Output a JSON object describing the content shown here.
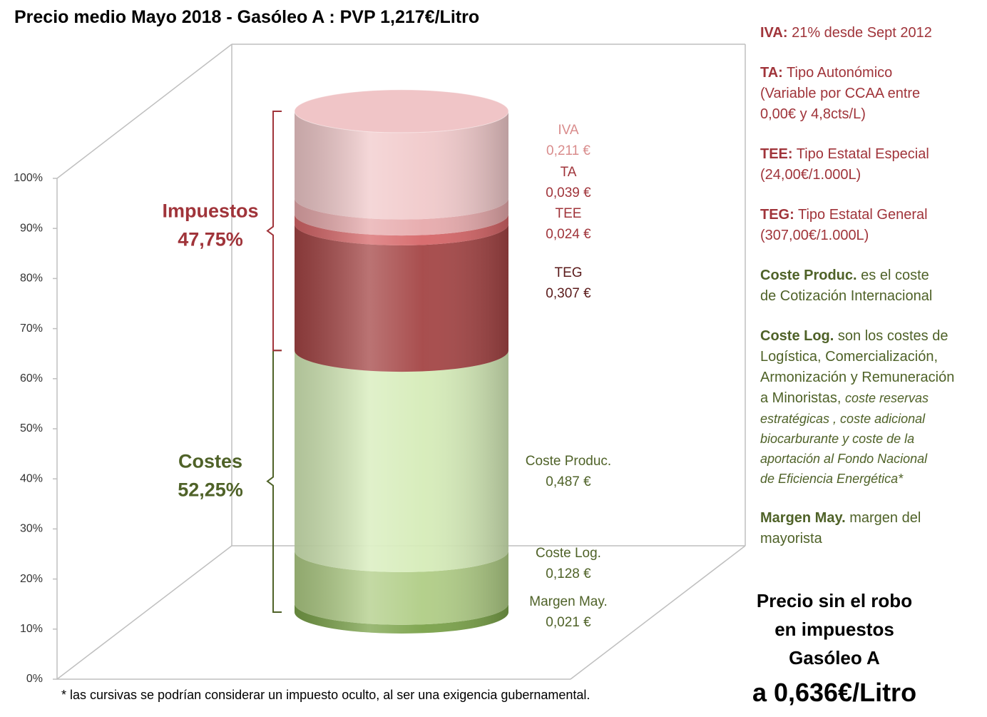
{
  "chart_data": {
    "type": "stacked_cylinder",
    "title": "Precio medio Mayo 2018 - Gasóleo A : PVP 1,217€/Litro",
    "ylim": [
      0,
      100
    ],
    "yticks": [
      {
        "value": 0,
        "label": "0%"
      },
      {
        "value": 10,
        "label": "10%"
      },
      {
        "value": 20,
        "label": "20%"
      },
      {
        "value": 30,
        "label": "30%"
      },
      {
        "value": 40,
        "label": "40%"
      },
      {
        "value": 50,
        "label": "50%"
      },
      {
        "value": 60,
        "label": "60%"
      },
      {
        "value": 70,
        "label": "70%"
      },
      {
        "value": 80,
        "label": "80%"
      },
      {
        "value": 90,
        "label": "90%"
      },
      {
        "value": 100,
        "label": "100%"
      }
    ],
    "segments": [
      {
        "name": "Margen May.",
        "value": 1.73,
        "price_label": "0,021 €",
        "color": "#6f9a3a",
        "label_color": "#4f6228"
      },
      {
        "name": "Coste Log.",
        "value": 10.52,
        "price_label": "0,128 €",
        "color": "#a9c97c",
        "label_color": "#4f6228"
      },
      {
        "name": "Coste Produc.",
        "value": 40.02,
        "price_label": "0,487 €",
        "color": "#d3eab3",
        "label_color": "#4f6228"
      },
      {
        "name": "TEG",
        "value": 25.23,
        "price_label": "0,307 €",
        "color": "#9c3535",
        "label_color": "#5a1a1a"
      },
      {
        "name": "TEE",
        "value": 1.97,
        "price_label": "0,024 €",
        "color": "#d3595b",
        "label_color": "#a0343a"
      },
      {
        "name": "TA",
        "value": 3.2,
        "price_label": "0,039 €",
        "color": "#e5a3a5",
        "label_color": "#a0343a"
      },
      {
        "name": "IVA",
        "value": 17.34,
        "price_label": "0,211 €",
        "color": "#f0c5c7",
        "label_color": "#d98c8c"
      }
    ],
    "groups": [
      {
        "name": "Costes",
        "value": 52.25,
        "value_label": "52,25%",
        "color": "#4f6228"
      },
      {
        "name": "Impuestos",
        "value": 47.75,
        "value_label": "47,75%",
        "color": "#a0343a"
      }
    ]
  },
  "notes": [
    {
      "term": "IVA:",
      "lines": [
        "21% desde Sept 2012"
      ]
    },
    {
      "term": "TA:",
      "lines": [
        "Tipo Autonómico",
        "(Variable por CCAA entre",
        "0,00€ y 4,8cts/L)"
      ]
    },
    {
      "term": "TEE:",
      "lines": [
        "Tipo Estatal Especial",
        "(24,00€/1.000L)"
      ]
    },
    {
      "term": "TEG:",
      "lines": [
        "Tipo Estatal General",
        "(307,00€/1.000L)"
      ]
    },
    {
      "term": "Coste Produc.",
      "lines": [
        "es el coste",
        "de Cotización Internacional"
      ]
    },
    {
      "term": "Coste Log.",
      "lines": [
        "son los costes de",
        "Logística, Comercialización,",
        "Armonización y Remuneración",
        "a Minoristas,"
      ],
      "italic": [
        "coste reservas",
        "estratégicas , coste adicional",
        "biocarburante y coste de la",
        "aportación al Fondo Nacional",
        "de Eficiencia Energética*"
      ]
    },
    {
      "term": "Margen May.",
      "lines": [
        "margen del",
        "mayorista"
      ]
    }
  ],
  "footnote": "* las cursivas se podrían considerar un impuesto oculto, al ser una exigencia gubernamental.",
  "price_box": [
    "Precio sin el robo",
    "en impuestos",
    "Gasóleo A",
    "a 0,636€/Litro"
  ]
}
